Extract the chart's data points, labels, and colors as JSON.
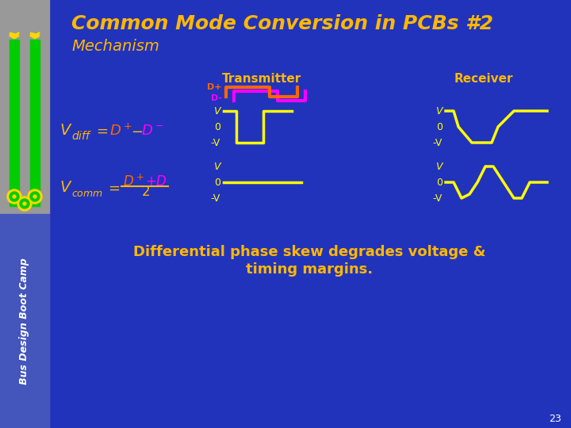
{
  "title": "Common Mode Conversion in PCBs #2",
  "subtitle": "Mechanism",
  "bg_color": "#2233bb",
  "header_bg": "#2233bb",
  "sidebar_bg": "#8899cc",
  "title_color": "#FFB800",
  "subtitle_color": "#FFB800",
  "transmitter_label": "Transmitter",
  "receiver_label": "Receiver",
  "label_color": "#FFB800",
  "bottom_text_line1": "Differential phase skew degrades voltage &",
  "bottom_text_line2": "timing margins.",
  "bottom_text_color": "#FFB800",
  "page_number": "23",
  "signal_color": "#FFFF00",
  "dp_color": "#FF6600",
  "dm_color": "#FF00FF",
  "white": "#FFFFFF",
  "green_bar": "#00CC00",
  "gold": "#FFD700"
}
